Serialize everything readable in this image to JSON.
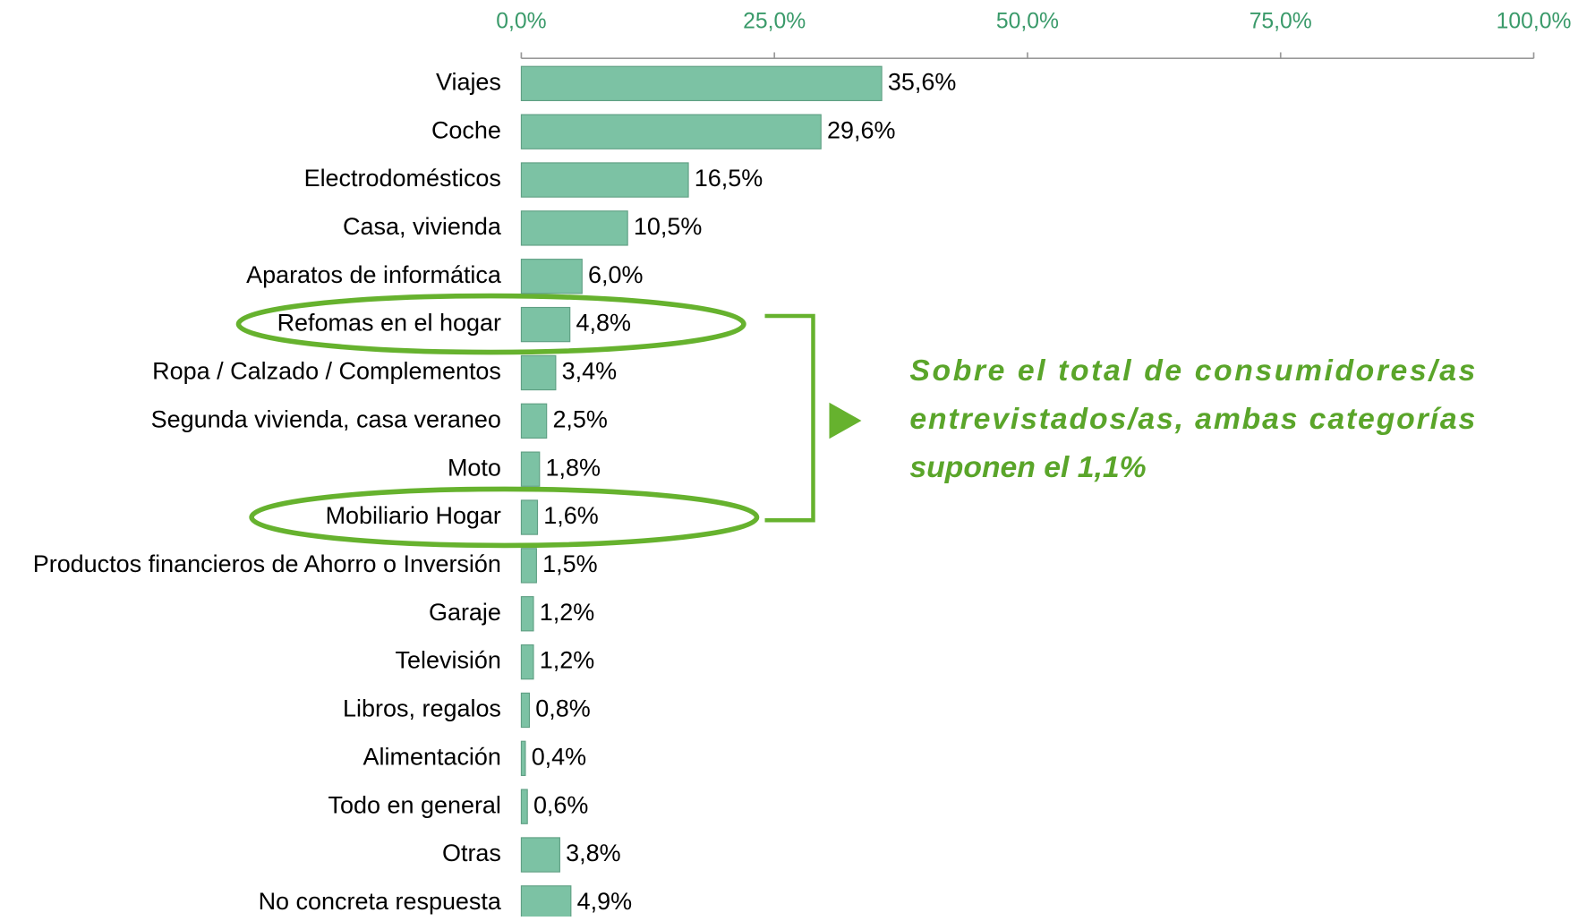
{
  "chart_data": {
    "type": "bar",
    "orientation": "horizontal",
    "categories": [
      "Viajes",
      "Coche",
      "Electrodomésticos",
      "Casa, vivienda",
      "Aparatos de informática",
      "Refomas en el hogar",
      "Ropa / Calzado / Complementos",
      "Segunda vivienda, casa veraneo",
      "Moto",
      "Mobiliario Hogar",
      "Productos financieros de Ahorro o Inversión",
      "Garaje",
      "Televisión",
      "Libros, regalos",
      "Alimentación",
      "Todo en general",
      "Otras",
      "No concreta respuesta"
    ],
    "values": [
      35.6,
      29.6,
      16.5,
      10.5,
      6.0,
      4.8,
      3.4,
      2.5,
      1.8,
      1.6,
      1.5,
      1.2,
      1.2,
      0.8,
      0.4,
      0.6,
      3.8,
      4.9
    ],
    "value_labels": [
      "35,6%",
      "29,6%",
      "16,5%",
      "10,5%",
      "6,0%",
      "4,8%",
      "3,4%",
      "2,5%",
      "1,8%",
      "1,6%",
      "1,5%",
      "1,2%",
      "1,2%",
      "0,8%",
      "0,4%",
      "0,6%",
      "3,8%",
      "4,9%"
    ],
    "color": "#7cc2a4",
    "xlim": [
      0,
      100
    ],
    "xticks": [
      {
        "value": 0,
        "label": "0,0%"
      },
      {
        "value": 25,
        "label": "25,0%"
      },
      {
        "value": 50,
        "label": "50,0%"
      },
      {
        "value": 75,
        "label": "75,0%"
      },
      {
        "value": 100,
        "label": "100,0%"
      }
    ],
    "annotations": [
      "Sobre el total de consumidores/as",
      "entrevistados/as, ambas categorías",
      "suponen el 1,1%"
    ]
  }
}
